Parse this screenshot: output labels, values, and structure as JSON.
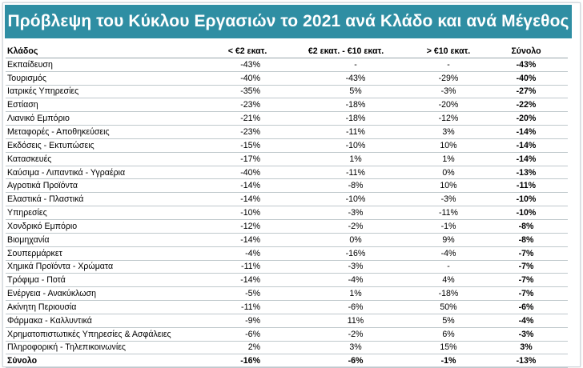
{
  "title": "Πρόβλεψη του Κύκλου Εργασιών το 2021 ανά Κλάδο και ανά Μέγεθος",
  "colors": {
    "banner": "#2f8ea3",
    "text": "#000000",
    "rule": "#bfc8cc"
  },
  "table": {
    "headers": [
      "Κλάδος",
      "< €2 εκατ.",
      "€2 εκατ. - €10 εκατ.",
      "> €10 εκατ.",
      "Σύνολο"
    ],
    "rows": [
      [
        "Εκπαίδευση",
        "-43%",
        "-",
        "-",
        "-43%"
      ],
      [
        "Τουρισμός",
        "-40%",
        "-43%",
        "-29%",
        "-40%"
      ],
      [
        "Ιατρικές Υπηρεσίες",
        "-35%",
        "5%",
        "-3%",
        "-27%"
      ],
      [
        "Εστίαση",
        "-23%",
        "-18%",
        "-20%",
        "-22%"
      ],
      [
        "Λιανικό Εμπόριο",
        "-21%",
        "-18%",
        "-12%",
        "-20%"
      ],
      [
        "Μεταφορές - Αποθηκεύσεις",
        "-23%",
        "-11%",
        "3%",
        "-14%"
      ],
      [
        "Εκδόσεις - Εκτυπώσεις",
        "-15%",
        "-10%",
        "10%",
        "-14%"
      ],
      [
        "Κατασκευές",
        "-17%",
        "1%",
        "1%",
        "-14%"
      ],
      [
        "Καύσιμα - Λιπαντικά - Υγραέρια",
        "-40%",
        "-11%",
        "0%",
        "-13%"
      ],
      [
        "Αγροτικά Προϊόντα",
        "-14%",
        "-8%",
        "10%",
        "-11%"
      ],
      [
        "Ελαστικά - Πλαστικά",
        "-14%",
        "-10%",
        "-3%",
        "-10%"
      ],
      [
        "Υπηρεσίες",
        "-10%",
        "-3%",
        "-11%",
        "-10%"
      ],
      [
        "Χονδρικό Εμπόριο",
        "-12%",
        "-2%",
        "-1%",
        "-8%"
      ],
      [
        "Βιομηχανία",
        "-14%",
        "0%",
        "9%",
        "-8%"
      ],
      [
        "Σουπερμάρκετ",
        "-4%",
        "-16%",
        "-4%",
        "-7%"
      ],
      [
        "Χημικά Προϊόντα - Χρώματα",
        "-11%",
        "-3%",
        "-",
        "-7%"
      ],
      [
        "Τρόφιμα - Ποτά",
        "-14%",
        "-4%",
        "4%",
        "-7%"
      ],
      [
        "Ενέργεια - Ανακύκλωση",
        "-5%",
        "1%",
        "-18%",
        "-7%"
      ],
      [
        "Ακίνητη Περιουσία",
        "-11%",
        "-6%",
        "50%",
        "-6%"
      ],
      [
        "Φάρμακα - Καλλυντικά",
        "-9%",
        "11%",
        "5%",
        "-4%"
      ],
      [
        "Χρηματοπιστωτικές Υπηρεσίες & Ασφάλειες",
        "-6%",
        "-2%",
        "6%",
        "-3%"
      ],
      [
        "Πληροφορική - Τηλεπικοινωνίες",
        "2%",
        "3%",
        "15%",
        "3%"
      ]
    ],
    "total": [
      "Σύνολο",
      "-16%",
      "-6%",
      "-1%",
      "-13%"
    ]
  }
}
